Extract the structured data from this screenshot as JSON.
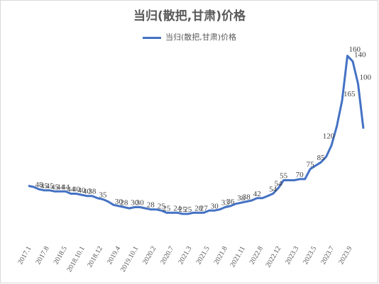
{
  "chart_data": {
    "type": "line",
    "title": "当归(散把,甘肃)价格",
    "legend": {
      "position": "top",
      "entries": [
        "当归(散把,甘肃)价格"
      ]
    },
    "series": [
      {
        "name": "当归(散把,甘肃)价格",
        "color": "#4472C4",
        "values": [
          49,
          48,
          46,
          45,
          45,
          44,
          44,
          44,
          42,
          42,
          41,
          40,
          40,
          38,
          37,
          35,
          32,
          31,
          30,
          29,
          30,
          30,
          29,
          28,
          28,
          27,
          25,
          25,
          25,
          24,
          24,
          25,
          25,
          25,
          27,
          27,
          28,
          30,
          31,
          33,
          34,
          35,
          36,
          38,
          38,
          40,
          42,
          47,
          54,
          54,
          54,
          55,
          55,
          64,
          67,
          70,
          75,
          85,
          102,
          125,
          165,
          160,
          140,
          100
        ]
      }
    ],
    "data_labels": [
      {
        "i": 2,
        "text": "48"
      },
      {
        "i": 3,
        "text": "45"
      },
      {
        "i": 4,
        "text": "45"
      },
      {
        "i": 5,
        "text": "45"
      },
      {
        "i": 6,
        "text": "44"
      },
      {
        "i": 7,
        "text": "44"
      },
      {
        "i": 8,
        "text": "44"
      },
      {
        "i": 9,
        "text": "40"
      },
      {
        "i": 10,
        "text": "40"
      },
      {
        "i": 11,
        "text": "40"
      },
      {
        "i": 12,
        "text": "38"
      },
      {
        "i": 14,
        "text": "35"
      },
      {
        "i": 17,
        "text": "30"
      },
      {
        "i": 18,
        "text": "28"
      },
      {
        "i": 20,
        "text": "30"
      },
      {
        "i": 21,
        "text": "30"
      },
      {
        "i": 23,
        "text": "28"
      },
      {
        "i": 25,
        "text": "25"
      },
      {
        "i": 26,
        "text": "25"
      },
      {
        "i": 28,
        "text": "24"
      },
      {
        "i": 29,
        "text": "25"
      },
      {
        "i": 30,
        "text": "25"
      },
      {
        "i": 32,
        "text": "28"
      },
      {
        "i": 33,
        "text": "27"
      },
      {
        "i": 35,
        "text": "30"
      },
      {
        "i": 37,
        "text": "33"
      },
      {
        "i": 38,
        "text": "36"
      },
      {
        "i": 40,
        "text": "38"
      },
      {
        "i": 41,
        "text": "38"
      },
      {
        "i": 43,
        "text": "42"
      },
      {
        "i": 46,
        "text": "54"
      },
      {
        "i": 47,
        "text": "54"
      },
      {
        "i": 48,
        "text": "55"
      },
      {
        "i": 51,
        "text": "70"
      },
      {
        "i": 53,
        "text": "75"
      },
      {
        "i": 55,
        "text": "85"
      },
      {
        "i": 57,
        "text": "120"
      },
      {
        "i": 59,
        "text": "165"
      },
      {
        "i": 60,
        "text": "160"
      },
      {
        "i": 61,
        "text": "140"
      },
      {
        "i": 62,
        "text": "100"
      }
    ],
    "x_tick_labels": [
      "2017.1",
      "2017.8",
      "2018.5",
      "2018.10.1",
      "2018.12",
      "2019.4",
      "2019.10.1",
      "2020.2",
      "2020.7",
      "2021.3",
      "2021.5",
      "2021.8",
      "2021.11",
      "2022.8",
      "2022.12",
      "2023.3",
      "2023.5",
      "2023.7",
      "2023.9"
    ],
    "ylim": [
      0,
      180
    ],
    "grid": false
  }
}
